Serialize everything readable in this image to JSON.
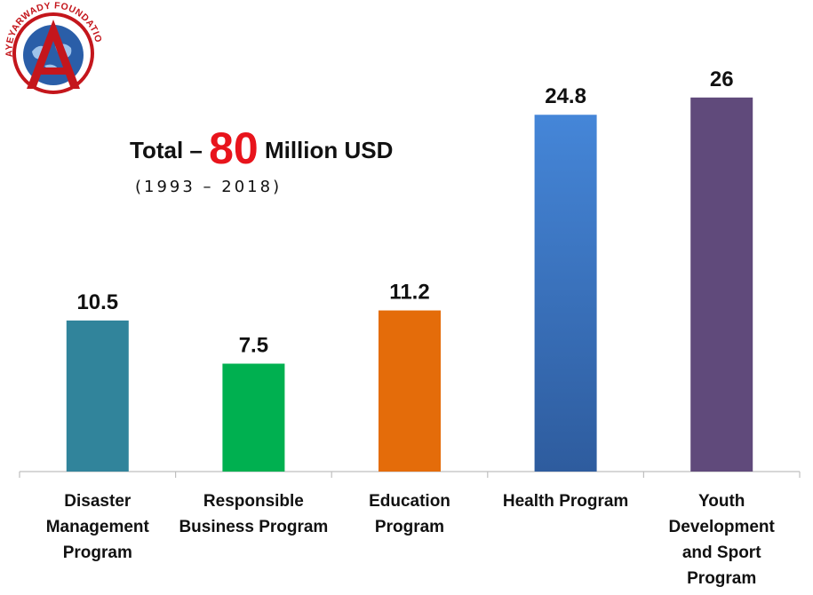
{
  "logo": {
    "text": "AYEYARWADY FOUNDATION",
    "colors": {
      "ring": "#c4161c",
      "globe": "#2a5ea8"
    }
  },
  "headline": {
    "prefix": "Total –",
    "amount": "80",
    "suffix": "Million USD",
    "period": "(1993 – 2018)",
    "amount_color": "#e8141c"
  },
  "chart_data": {
    "type": "bar",
    "title": "",
    "xlabel": "",
    "ylabel": "",
    "ylim": [
      0,
      28
    ],
    "grid": false,
    "legend": "none",
    "categories": [
      [
        "Disaster",
        "Management",
        "Program"
      ],
      [
        "Responsible",
        "Business Program"
      ],
      [
        "Education",
        "Program"
      ],
      [
        "Health Program"
      ],
      [
        "Youth",
        "Development",
        "and Sport",
        "Program"
      ]
    ],
    "values": [
      10.5,
      7.5,
      11.2,
      24.8,
      26
    ],
    "labels": [
      "10.5",
      "7.5",
      "11.2",
      "24.8",
      "26"
    ],
    "colors": [
      "#31849b",
      "#00b050",
      "#e46c0a",
      "#3a6fc4",
      "#604a7b"
    ]
  }
}
